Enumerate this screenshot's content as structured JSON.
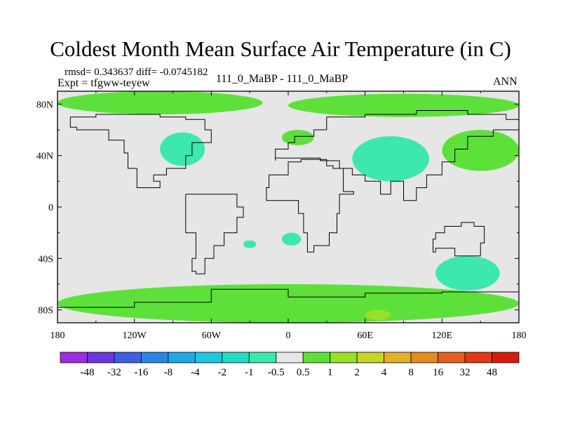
{
  "chart_data": {
    "type": "heatmap",
    "title": "Coldest Month Mean Surface Air Temperature (in C)",
    "stats_label": "rmsd= 0.343637  diff= -0.0745182",
    "experiment_label": "Expt = tfgww-teyew",
    "subtitle": "111_0_MaBP - 111_0_MaBP",
    "season": "ANN",
    "xlabel": "",
    "ylabel": "",
    "x_ticks": [
      "180",
      "120W",
      "60W",
      "0",
      "60E",
      "120E",
      "180"
    ],
    "y_ticks": [
      "80N",
      "40N",
      "0",
      "40S",
      "80S"
    ],
    "xlim": [
      -180,
      180
    ],
    "ylim": [
      -90,
      90
    ],
    "colorbar": {
      "labels": [
        "-48",
        "-32",
        "-16",
        "-8",
        "-4",
        "-2",
        "-1",
        "-0.5",
        "0.5",
        "1",
        "2",
        "4",
        "8",
        "16",
        "32",
        "48"
      ],
      "colors": [
        "#9a2ee0",
        "#6a37e0",
        "#3d5fe0",
        "#2a86e6",
        "#21a8e8",
        "#1fc7e0",
        "#26dcc6",
        "#3ce8b0",
        "#e6e6e6",
        "#5ee03a",
        "#98e02a",
        "#c6d628",
        "#e0b028",
        "#e68a22",
        "#e6601c",
        "#e03a14",
        "#d21e0e"
      ]
    },
    "background_value_bin": "-0.5 to 0.5",
    "regions": [
      {
        "name": "arctic-north-america",
        "bin": "1 to 2",
        "lon": [
          -180,
          -20
        ],
        "lat": [
          72,
          90
        ]
      },
      {
        "name": "arctic-eurasia",
        "bin": "1 to 2",
        "lon": [
          0,
          180
        ],
        "lat": [
          70,
          88
        ]
      },
      {
        "name": "northwest-america",
        "bin": "-1 to -0.5",
        "lon": [
          -100,
          -65
        ],
        "lat": [
          32,
          58
        ]
      },
      {
        "name": "central-asia",
        "bin": "-1 to -0.5",
        "lon": [
          50,
          110
        ],
        "lat": [
          20,
          55
        ]
      },
      {
        "name": "western-europe",
        "bin": "1 to 2",
        "lon": [
          -5,
          20
        ],
        "lat": [
          48,
          60
        ]
      },
      {
        "name": "east-asia",
        "bin": "1 to 2",
        "lon": [
          120,
          180
        ],
        "lat": [
          28,
          60
        ]
      },
      {
        "name": "south-america",
        "bin": "-1 to -0.5",
        "lon": [
          -35,
          -25
        ],
        "lat": [
          -32,
          -26
        ]
      },
      {
        "name": "south-atlantic",
        "bin": "-1 to -0.5",
        "lon": [
          -5,
          10
        ],
        "lat": [
          -30,
          -20
        ]
      },
      {
        "name": "australia",
        "bin": "-1 to -0.5",
        "lon": [
          115,
          165
        ],
        "lat": [
          -65,
          -38
        ]
      },
      {
        "name": "antarctic-coast",
        "bin": "1 to 2",
        "lon": [
          -180,
          180
        ],
        "lat": [
          -90,
          -60
        ]
      },
      {
        "name": "antarctic-interior",
        "bin": "2 to 4",
        "lon": [
          60,
          80
        ],
        "lat": [
          -88,
          -80
        ]
      }
    ]
  }
}
